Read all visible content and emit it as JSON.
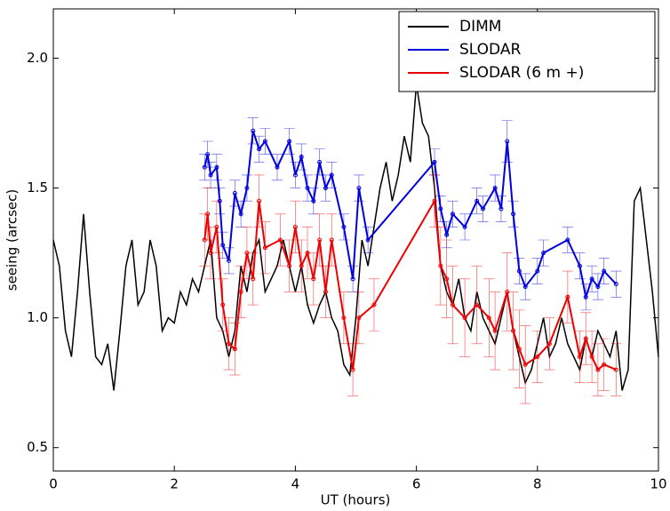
{
  "chart_data": {
    "type": "line",
    "xlabel": "UT (hours)",
    "ylabel": "seeing (arcsec)",
    "xlim": [
      0,
      10
    ],
    "ylim": [
      0.41,
      2.19
    ],
    "xticks": [
      0,
      2,
      4,
      6,
      8,
      10
    ],
    "yticks": [
      {
        "value": 0.5,
        "label": "0.5"
      },
      {
        "value": 1.0,
        "label": "1.0"
      },
      {
        "value": 1.5,
        "label": "1.5"
      },
      {
        "value": 2.0,
        "label": "2.0"
      }
    ],
    "legend": "upper right",
    "series": [
      {
        "name": "DIMM",
        "color": "#000000",
        "x": [
          0,
          0.1,
          0.2,
          0.3,
          0.4,
          0.5,
          0.6,
          0.7,
          0.8,
          0.9,
          1,
          1.1,
          1.2,
          1.3,
          1.4,
          1.5,
          1.6,
          1.7,
          1.8,
          1.9,
          2,
          2.1,
          2.2,
          2.3,
          2.4,
          2.5,
          2.6,
          2.7,
          2.8,
          2.9,
          3,
          3.1,
          3.2,
          3.3,
          3.4,
          3.5,
          3.6,
          3.7,
          3.8,
          3.9,
          4,
          4.1,
          4.2,
          4.3,
          4.4,
          4.5,
          4.6,
          4.7,
          4.8,
          4.9,
          5,
          5.1,
          5.2,
          5.3,
          5.4,
          5.5,
          5.6,
          5.7,
          5.8,
          5.9,
          6,
          6.1,
          6.2,
          6.3,
          6.4,
          6.5,
          6.6,
          6.7,
          6.8,
          6.9,
          7,
          7.1,
          7.2,
          7.3,
          7.4,
          7.5,
          7.6,
          7.7,
          7.8,
          7.9,
          8,
          8.1,
          8.2,
          8.3,
          8.4,
          8.5,
          8.6,
          8.7,
          8.8,
          8.9,
          9,
          9.1,
          9.2,
          9.3,
          9.4,
          9.5,
          9.6,
          9.7,
          9.8,
          9.9,
          10
        ],
        "values": [
          1.3,
          1.2,
          0.95,
          0.85,
          1.1,
          1.4,
          1.1,
          0.85,
          0.82,
          0.9,
          0.72,
          0.95,
          1.2,
          1.3,
          1.05,
          1.1,
          1.3,
          1.2,
          0.95,
          1.0,
          0.98,
          1.1,
          1.05,
          1.15,
          1.1,
          1.2,
          1.3,
          1.0,
          0.95,
          0.85,
          0.95,
          1.2,
          1.1,
          1.25,
          1.3,
          1.1,
          1.15,
          1.2,
          1.3,
          1.2,
          1.1,
          1.2,
          1.05,
          0.98,
          1.05,
          1.1,
          1.0,
          0.95,
          0.82,
          0.78,
          1.0,
          1.3,
          1.2,
          1.35,
          1.5,
          1.6,
          1.45,
          1.55,
          1.7,
          1.6,
          1.9,
          1.75,
          1.7,
          1.5,
          1.2,
          1.1,
          1.05,
          1.15,
          1.0,
          0.95,
          1.1,
          1.0,
          0.95,
          0.9,
          1.0,
          1.1,
          0.95,
          0.85,
          0.75,
          0.8,
          0.9,
          1.0,
          0.85,
          0.9,
          1.0,
          0.9,
          0.85,
          0.8,
          0.92,
          0.85,
          0.95,
          0.9,
          0.85,
          0.95,
          0.72,
          0.8,
          1.45,
          1.5,
          1.3,
          1.1,
          0.85
        ]
      },
      {
        "name": "SLODAR",
        "color": "#0000dd",
        "x": [
          2.5,
          2.55,
          2.6,
          2.7,
          2.75,
          2.8,
          2.9,
          3,
          3.1,
          3.2,
          3.3,
          3.4,
          3.5,
          3.7,
          3.9,
          4,
          4.1,
          4.2,
          4.3,
          4.4,
          4.5,
          4.6,
          4.8,
          4.95,
          5.05,
          5.2,
          6.3,
          6.4,
          6.5,
          6.6,
          6.8,
          7,
          7.1,
          7.3,
          7.4,
          7.5,
          7.6,
          7.7,
          7.8,
          8,
          8.1,
          8.5,
          8.7,
          8.8,
          8.9,
          9,
          9.1,
          9.3
        ],
        "values": [
          1.58,
          1.63,
          1.55,
          1.58,
          1.45,
          1.28,
          1.22,
          1.48,
          1.4,
          1.5,
          1.72,
          1.65,
          1.68,
          1.58,
          1.68,
          1.55,
          1.62,
          1.5,
          1.45,
          1.6,
          1.5,
          1.55,
          1.35,
          1.15,
          1.5,
          1.3,
          1.6,
          1.42,
          1.32,
          1.4,
          1.35,
          1.45,
          1.42,
          1.5,
          1.42,
          1.68,
          1.4,
          1.18,
          1.12,
          1.18,
          1.25,
          1.3,
          1.2,
          1.08,
          1.15,
          1.12,
          1.18,
          1.13
        ],
        "errors": [
          0.05,
          0.05,
          0.05,
          0.05,
          0.05,
          0.05,
          0.05,
          0.05,
          0.05,
          0.05,
          0.05,
          0.05,
          0.05,
          0.05,
          0.05,
          0.05,
          0.05,
          0.05,
          0.05,
          0.05,
          0.05,
          0.05,
          0.05,
          0.05,
          0.05,
          0.05,
          0.05,
          0.05,
          0.05,
          0.05,
          0.05,
          0.05,
          0.05,
          0.05,
          0.05,
          0.08,
          0.05,
          0.05,
          0.05,
          0.05,
          0.05,
          0.05,
          0.05,
          0.05,
          0.05,
          0.05,
          0.05,
          0.05
        ]
      },
      {
        "name": "SLODAR (6 m +)",
        "color": "#ee0000",
        "x": [
          2.5,
          2.55,
          2.6,
          2.7,
          2.8,
          2.9,
          3,
          3.1,
          3.2,
          3.3,
          3.4,
          3.5,
          3.75,
          3.9,
          4,
          4.1,
          4.2,
          4.3,
          4.4,
          4.5,
          4.6,
          4.8,
          4.95,
          5.05,
          5.3,
          6.3,
          6.4,
          6.5,
          6.6,
          6.8,
          7,
          7.2,
          7.3,
          7.5,
          7.6,
          7.7,
          7.8,
          8,
          8.2,
          8.5,
          8.7,
          8.8,
          8.9,
          9,
          9.1,
          9.3
        ],
        "values": [
          1.3,
          1.4,
          1.25,
          1.35,
          1.05,
          0.9,
          0.88,
          1.1,
          1.25,
          1.15,
          1.45,
          1.27,
          1.3,
          1.2,
          1.35,
          1.2,
          1.25,
          1.15,
          1.3,
          1.1,
          1.3,
          1.0,
          0.8,
          1.0,
          1.05,
          1.45,
          1.2,
          1.15,
          1.05,
          1.0,
          1.05,
          1.0,
          0.95,
          1.1,
          0.95,
          0.88,
          0.82,
          0.85,
          0.9,
          1.08,
          0.85,
          0.92,
          0.85,
          0.8,
          0.82,
          0.8
        ],
        "errors": [
          0.1,
          0.1,
          0.1,
          0.1,
          0.1,
          0.1,
          0.1,
          0.1,
          0.1,
          0.1,
          0.1,
          0.1,
          0.1,
          0.1,
          0.1,
          0.1,
          0.1,
          0.1,
          0.1,
          0.1,
          0.1,
          0.1,
          0.1,
          0.1,
          0.1,
          0.1,
          0.15,
          0.15,
          0.15,
          0.15,
          0.15,
          0.15,
          0.15,
          0.15,
          0.15,
          0.15,
          0.15,
          0.1,
          0.1,
          0.1,
          0.1,
          0.1,
          0.1,
          0.1,
          0.1,
          0.1
        ]
      }
    ]
  }
}
